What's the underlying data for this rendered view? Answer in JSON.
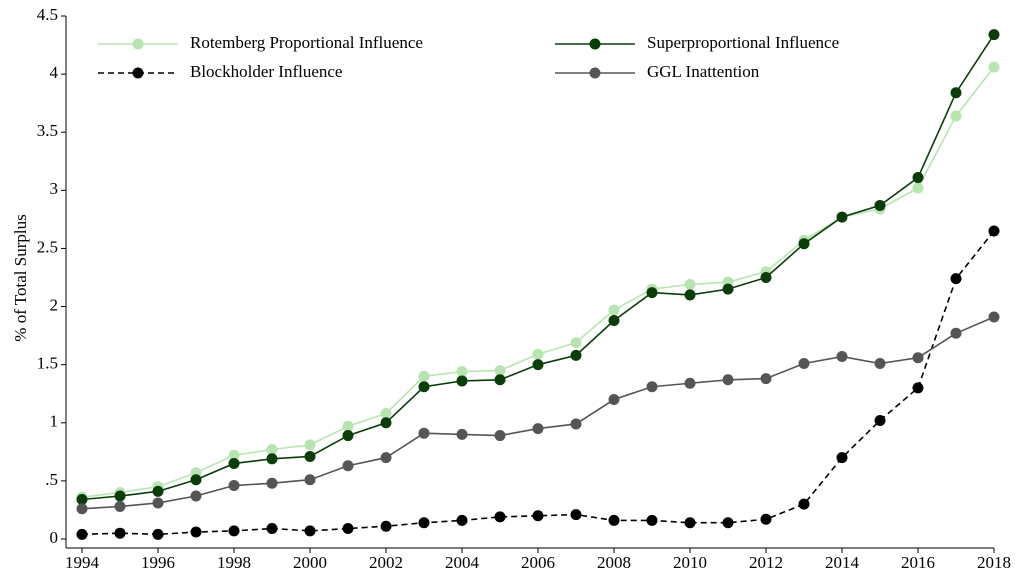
{
  "chart_data": {
    "type": "line",
    "y_label": "% of Total Surplus",
    "x": [
      1994,
      1995,
      1996,
      1997,
      1998,
      1999,
      2000,
      2001,
      2002,
      2003,
      2004,
      2005,
      2006,
      2007,
      2008,
      2009,
      2010,
      2011,
      2012,
      2013,
      2014,
      2015,
      2016,
      2017,
      2018
    ],
    "series": [
      {
        "name": "Rotemberg Proportional Influence",
        "color": "#b8e4b2",
        "linestyle": "solid",
        "values": [
          0.36,
          0.4,
          0.45,
          0.57,
          0.72,
          0.77,
          0.81,
          0.97,
          1.08,
          1.4,
          1.44,
          1.45,
          1.59,
          1.69,
          1.97,
          2.15,
          2.19,
          2.21,
          2.3,
          2.57,
          2.77,
          2.84,
          3.02,
          3.64,
          4.06
        ]
      },
      {
        "name": "Superproportional Influence",
        "color": "#0b3d0b",
        "linestyle": "solid",
        "values": [
          0.34,
          0.37,
          0.41,
          0.51,
          0.65,
          0.69,
          0.71,
          0.89,
          1.0,
          1.31,
          1.36,
          1.37,
          1.5,
          1.58,
          1.88,
          2.12,
          2.1,
          2.15,
          2.25,
          2.54,
          2.77,
          2.87,
          3.11,
          3.84,
          4.34
        ]
      },
      {
        "name": "Blockholder Influence",
        "color": "#000000",
        "linestyle": "dashed",
        "values": [
          0.04,
          0.05,
          0.04,
          0.06,
          0.07,
          0.09,
          0.07,
          0.09,
          0.11,
          0.14,
          0.16,
          0.19,
          0.2,
          0.21,
          0.16,
          0.16,
          0.14,
          0.14,
          0.17,
          0.3,
          0.7,
          1.02,
          1.3,
          2.24,
          2.65
        ]
      },
      {
        "name": "GGL Inattention",
        "color": "#555555",
        "linestyle": "solid",
        "values": [
          0.26,
          0.28,
          0.31,
          0.37,
          0.46,
          0.48,
          0.51,
          0.63,
          0.7,
          0.91,
          0.9,
          0.89,
          0.95,
          0.99,
          1.2,
          1.31,
          1.34,
          1.37,
          1.38,
          1.51,
          1.57,
          1.51,
          1.56,
          1.77,
          1.91
        ]
      }
    ],
    "xlim": [
      1994,
      2018
    ],
    "xticks": [
      1994,
      1996,
      1998,
      2000,
      2002,
      2004,
      2006,
      2008,
      2010,
      2012,
      2014,
      2016,
      2018
    ],
    "ylim": [
      0,
      4.5
    ],
    "yticks": [
      0,
      {
        "value": 0.5,
        "label": ".5"
      },
      1,
      1.5,
      2,
      2.5,
      3,
      3.5,
      4,
      4.5
    ],
    "grid": false,
    "legend": "top"
  }
}
